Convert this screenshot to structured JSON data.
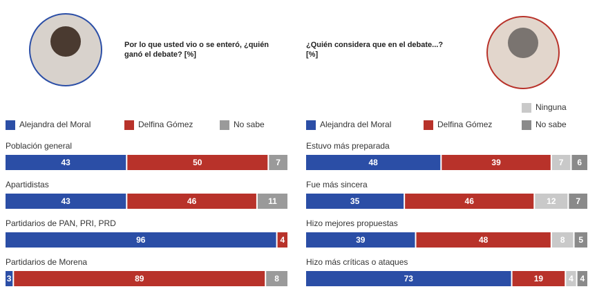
{
  "chart_data": [
    {
      "type": "bar",
      "stacked": true,
      "orientation": "horizontal",
      "title": "Por lo que usted vio o se enteró, ¿quién ganó el debate? [%]",
      "categories": [
        "Población general",
        "Apartidistas",
        "Partidarios de PAN, PRI, PRD",
        "Partidarios de Morena"
      ],
      "series": [
        {
          "name": "Alejandra del Moral",
          "color": "#2b4ea6",
          "values": [
            43,
            43,
            96,
            3
          ]
        },
        {
          "name": "Delfina Gómez",
          "color": "#b8322a",
          "values": [
            50,
            46,
            4,
            89
          ]
        },
        {
          "name": "No sabe",
          "color": "#9a9a9a",
          "values": [
            7,
            11,
            null,
            8
          ]
        }
      ]
    },
    {
      "type": "bar",
      "stacked": true,
      "orientation": "horizontal",
      "title": "¿Quién considera que en el debate...? [%]",
      "categories": [
        "Estuvo más preparada",
        "Fue más sincera",
        "Hizo mejores propuestas",
        "Hizo más críticas o ataques"
      ],
      "series": [
        {
          "name": "Alejandra del Moral",
          "color": "#2b4ea6",
          "values": [
            48,
            35,
            39,
            73
          ]
        },
        {
          "name": "Delfina Gómez",
          "color": "#b8322a",
          "values": [
            39,
            46,
            48,
            19
          ]
        },
        {
          "name": "Ninguna",
          "color": "#c9c9c9",
          "values": [
            7,
            12,
            8,
            4
          ]
        },
        {
          "name": "No sabe",
          "color": "#8a8a8a",
          "values": [
            6,
            7,
            5,
            4
          ]
        }
      ]
    }
  ]
}
